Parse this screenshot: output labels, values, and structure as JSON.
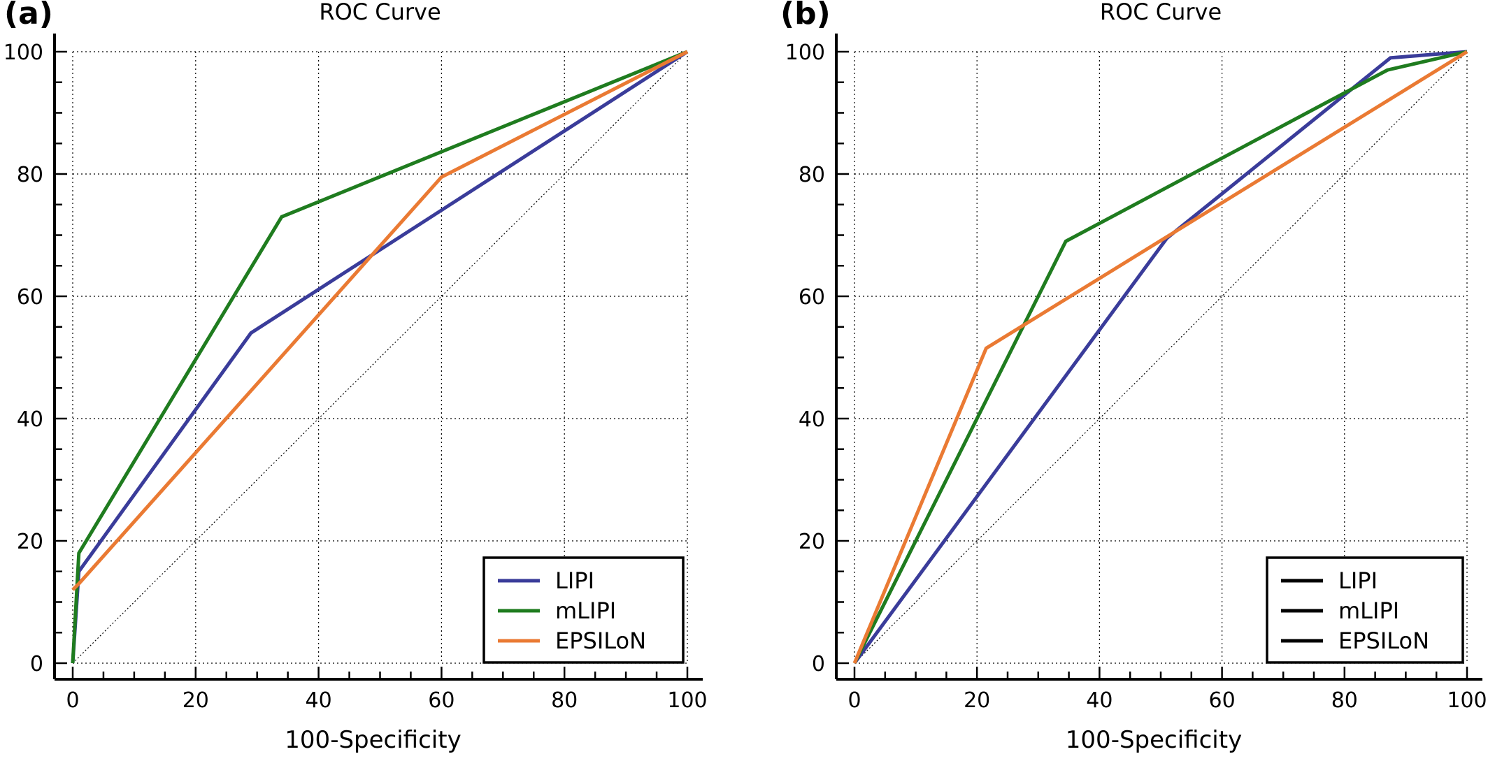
{
  "figure": {
    "panel_letters": [
      "(a)",
      "(b)"
    ]
  },
  "chart_data": [
    {
      "type": "line",
      "panel": "(a)",
      "title": "ROC Curve",
      "xlabel": "100-Specificity",
      "ylabel": "",
      "xlim": [
        0,
        100
      ],
      "ylim": [
        0,
        100
      ],
      "xticks": [
        "0",
        "20",
        "40",
        "60",
        "80",
        "100"
      ],
      "yticks": [
        "0",
        "20",
        "40",
        "60",
        "80",
        "100"
      ],
      "grid": true,
      "diagonal_reference": true,
      "legend_position": "bottom-right",
      "series": [
        {
          "name": "LIPI",
          "color": "#3a3c9a",
          "points": [
            [
              0,
              0
            ],
            [
              1,
              15
            ],
            [
              29,
              54
            ],
            [
              100,
              100
            ]
          ]
        },
        {
          "name": "mLIPI",
          "color": "#1f7c1f",
          "points": [
            [
              0,
              0
            ],
            [
              1,
              18
            ],
            [
              34,
              73
            ],
            [
              100,
              100
            ]
          ]
        },
        {
          "name": "EPSILoN",
          "color": "#ea7a33",
          "points": [
            [
              0,
              12
            ],
            [
              1,
              13
            ],
            [
              60,
              79.5
            ],
            [
              100,
              100
            ]
          ]
        }
      ]
    },
    {
      "type": "line",
      "panel": "(b)",
      "title": "ROC Curve",
      "xlabel": "100-Specificity",
      "ylabel": "",
      "xlim": [
        0,
        100
      ],
      "ylim": [
        0,
        100
      ],
      "xticks": [
        "0",
        "20",
        "40",
        "60",
        "80",
        "100"
      ],
      "yticks": [
        "0",
        "20",
        "40",
        "60",
        "80",
        "100"
      ],
      "grid": true,
      "diagonal_reference": true,
      "legend_position": "bottom-right",
      "legend_line_color": "#000000",
      "series": [
        {
          "name": "LIPI",
          "color": "#3a3c9a",
          "points": [
            [
              0,
              0
            ],
            [
              51,
              69.5
            ],
            [
              87.5,
              99
            ],
            [
              100,
              100
            ]
          ]
        },
        {
          "name": "mLIPI",
          "color": "#1f7c1f",
          "points": [
            [
              0,
              0
            ],
            [
              34.5,
              69
            ],
            [
              87,
              97
            ],
            [
              100,
              100
            ]
          ]
        },
        {
          "name": "EPSILoN",
          "color": "#ea7a33",
          "points": [
            [
              0,
              0
            ],
            [
              21.5,
              51.5
            ],
            [
              100,
              100
            ]
          ]
        }
      ]
    }
  ]
}
